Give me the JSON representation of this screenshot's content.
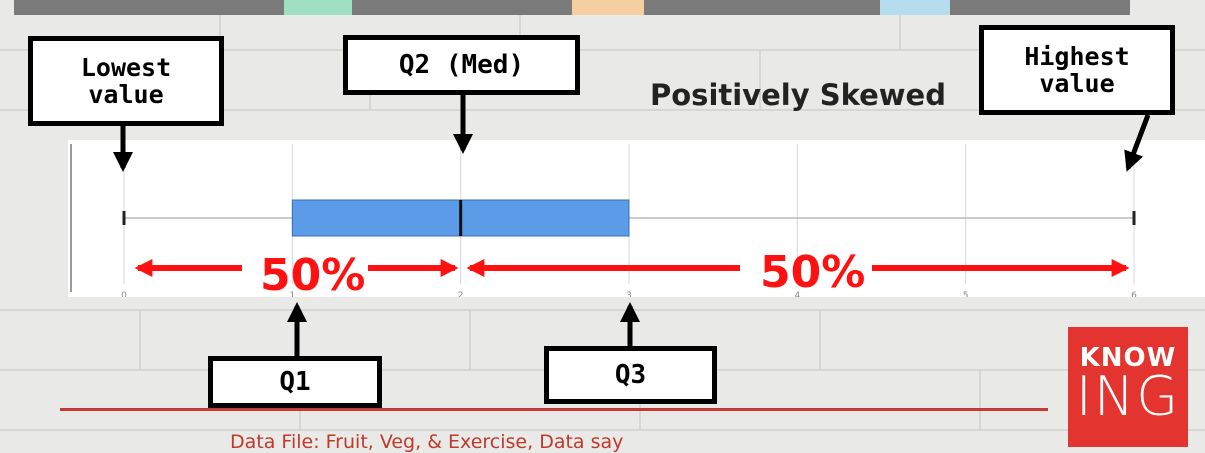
{
  "chart_data": {
    "type": "box",
    "title": "",
    "subtitle": "Positively Skewed",
    "xlabel": "",
    "ylabel": "",
    "xlim": [
      0,
      6
    ],
    "ticks": [
      "0",
      "1",
      "2",
      "3",
      "4",
      "5",
      "6"
    ],
    "min": 0,
    "q1": 1,
    "median": 2,
    "q3": 3,
    "max": 6,
    "box_color": "#5b9be8",
    "grid": true
  },
  "annotations": {
    "lowest": "Lowest\nvalue",
    "median": "Q2 (Med)",
    "highest": "Highest\nvalue",
    "q1": "Q1",
    "q3": "Q3",
    "left_percent": "50%",
    "right_percent": "50%"
  },
  "colors": {
    "arrow_red": "#ff1111",
    "logo_red": "#e3342f",
    "accent_line": "#c23a3a"
  },
  "logo": {
    "line1": "KNOW",
    "line2": "ING"
  },
  "footer": "Data File: Fruit, Veg, & Exercise, Data say"
}
